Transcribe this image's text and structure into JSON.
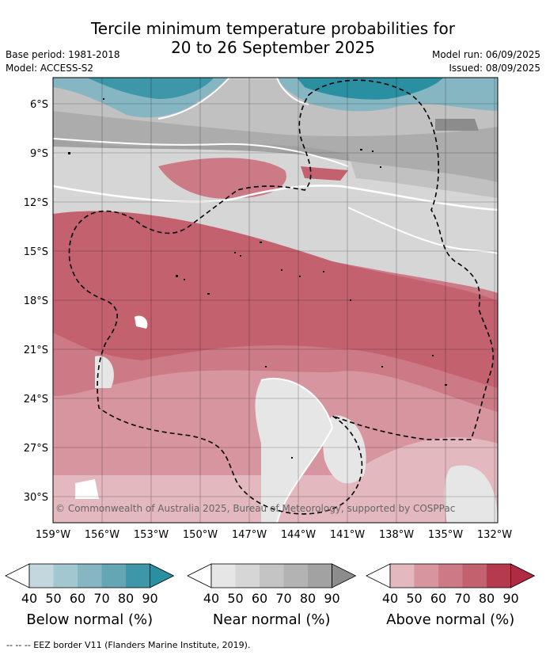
{
  "header": {
    "title_line1": "Tercile minimum temperature probabilities for",
    "title_line2": "20 to 26 September 2025",
    "base_period": "Base period: 1981-2018",
    "model": "Model: ACCESS-S2",
    "model_run": "Model run: 06/09/2025",
    "issued": "Issued: 08/09/2025"
  },
  "map": {
    "lat_labels": [
      "6°S",
      "9°S",
      "12°S",
      "15°S",
      "18°S",
      "21°S",
      "24°S",
      "27°S",
      "30°S"
    ],
    "lon_labels": [
      "159°W",
      "156°W",
      "153°W",
      "150°W",
      "147°W",
      "144°W",
      "141°W",
      "138°W",
      "135°W",
      "132°W"
    ],
    "copyright": "© Commonwealth of Australia 2025, Bureau of Meteorology, supported by COSPPac"
  },
  "colorbars": [
    {
      "name": "below",
      "title": "Below normal (%)",
      "ticks": [
        "40",
        "50",
        "60",
        "70",
        "80",
        "90"
      ],
      "colors": [
        "#ffffff",
        "#c2d8de",
        "#a3c7d0",
        "#86b6c2",
        "#65a6b5",
        "#3d97a8",
        "#2a8fa0"
      ]
    },
    {
      "name": "near",
      "title": "Near normal (%)",
      "ticks": [
        "40",
        "50",
        "60",
        "70",
        "80",
        "90"
      ],
      "colors": [
        "#ffffff",
        "#e6e6e6",
        "#d6d6d6",
        "#c4c4c4",
        "#b3b3b3",
        "#a2a2a2",
        "#8c8c8c"
      ]
    },
    {
      "name": "above",
      "title": "Above normal (%)",
      "ticks": [
        "40",
        "50",
        "60",
        "70",
        "80",
        "90"
      ],
      "colors": [
        "#ffffff",
        "#e3b8bf",
        "#d6959f",
        "#cc7a86",
        "#c3616f",
        "#b53a4e",
        "#b02a43"
      ]
    }
  ],
  "footnote": "--  --  -- EEZ border V11 (Flanders Marine Institute, 2019)."
}
